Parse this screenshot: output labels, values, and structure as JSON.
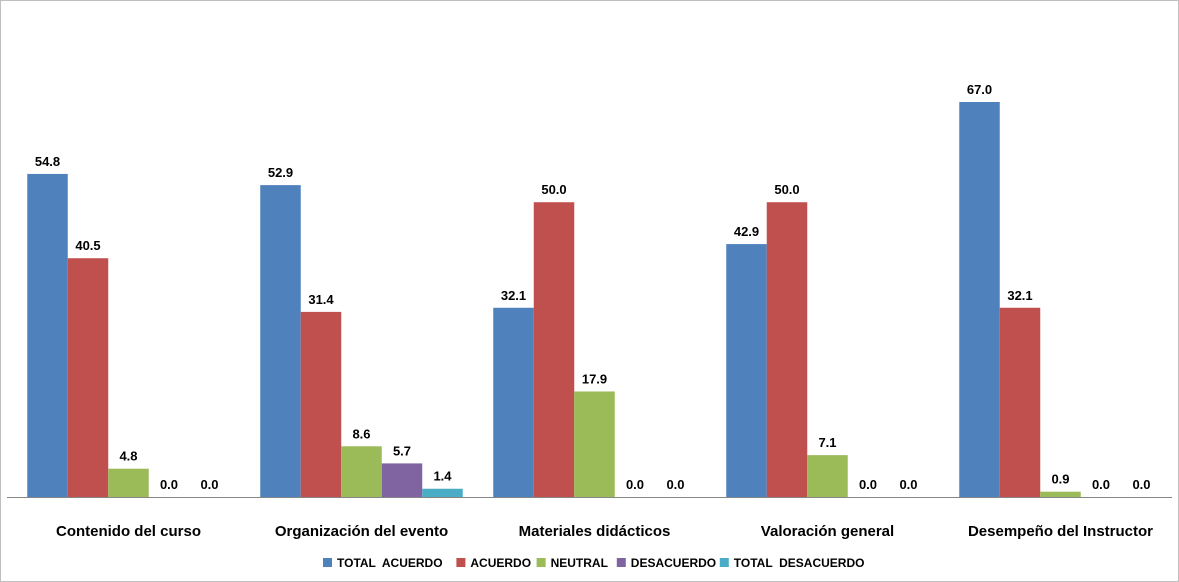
{
  "chart_data": {
    "type": "bar",
    "title": "",
    "xlabel": "",
    "ylabel": "",
    "ylim": [
      0,
      80
    ],
    "grid": false,
    "legend_position": "bottom",
    "categories": [
      "Contenido del curso",
      "Organización del evento",
      "Materiales didácticos",
      "Valoración general",
      "Desempeño del Instructor"
    ],
    "series": [
      {
        "name": "TOTAL  ACUERDO",
        "color": "#4F81BD",
        "values": [
          54.8,
          52.9,
          32.1,
          42.9,
          67.0
        ]
      },
      {
        "name": "ACUERDO",
        "color": "#C0504D",
        "values": [
          40.5,
          31.4,
          50.0,
          50.0,
          32.1
        ]
      },
      {
        "name": "NEUTRAL",
        "color": "#9BBB59",
        "values": [
          4.8,
          8.6,
          17.9,
          7.1,
          0.9
        ]
      },
      {
        "name": "DESACUERDO",
        "color": "#8064A2",
        "values": [
          0.0,
          5.7,
          0.0,
          0.0,
          0.0
        ]
      },
      {
        "name": "TOTAL  DESACUERDO",
        "color": "#4BACC6",
        "values": [
          0.0,
          1.4,
          0.0,
          0.0,
          0.0
        ]
      }
    ]
  }
}
